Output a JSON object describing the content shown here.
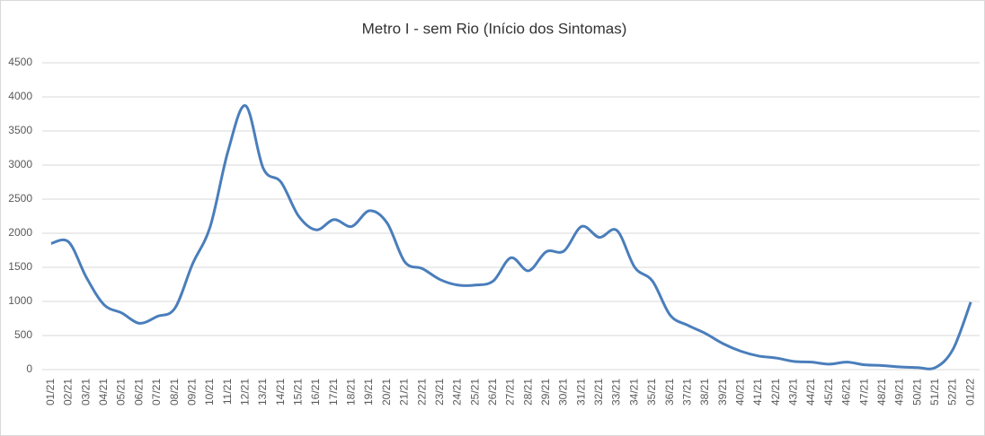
{
  "chart_data": {
    "type": "line",
    "title": "Metro I - sem Rio (Início dos Sintomas)",
    "categories": [
      "01/21",
      "02/21",
      "03/21",
      "04/21",
      "05/21",
      "06/21",
      "07/21",
      "08/21",
      "09/21",
      "10/21",
      "11/21",
      "12/21",
      "13/21",
      "14/21",
      "15/21",
      "16/21",
      "17/21",
      "18/21",
      "19/21",
      "20/21",
      "21/21",
      "22/21",
      "23/21",
      "24/21",
      "25/21",
      "26/21",
      "27/21",
      "28/21",
      "29/21",
      "30/21",
      "31/21",
      "32/21",
      "33/21",
      "34/21",
      "35/21",
      "36/21",
      "37/21",
      "38/21",
      "39/21",
      "40/21",
      "41/21",
      "42/21",
      "43/21",
      "44/21",
      "45/21",
      "46/21",
      "47/21",
      "48/21",
      "49/21",
      "50/21",
      "51/21",
      "52/21",
      "01/22"
    ],
    "series": [
      {
        "name": "Metro I - sem Rio",
        "color": "#4a7ebb",
        "values": [
          1850,
          1870,
          1350,
          950,
          830,
          680,
          780,
          900,
          1550,
          2100,
          3200,
          3870,
          2950,
          2750,
          2250,
          2050,
          2200,
          2100,
          2330,
          2150,
          1580,
          1480,
          1320,
          1240,
          1240,
          1300,
          1640,
          1450,
          1730,
          1740,
          2100,
          1940,
          2040,
          1500,
          1300,
          800,
          650,
          530,
          380,
          270,
          200,
          170,
          120,
          110,
          80,
          110,
          70,
          60,
          40,
          30,
          30,
          300,
          990
        ]
      }
    ],
    "ylim": [
      0,
      4500
    ],
    "yticks": [
      0,
      500,
      1000,
      1500,
      2000,
      2500,
      3000,
      3500,
      4000,
      4500
    ],
    "grid": true
  }
}
